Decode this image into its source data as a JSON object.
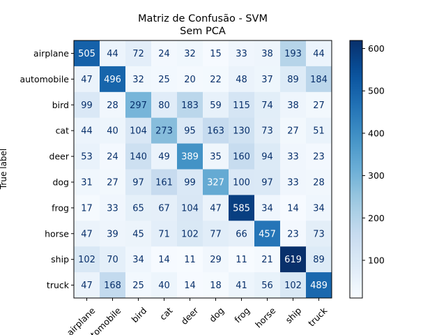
{
  "chart_data": {
    "type": "heatmap",
    "title": "Matriz de Confusão - SVM",
    "subtitle": "Sem PCA",
    "ylabel": "True label",
    "xlabel": "",
    "categories": [
      "airplane",
      "automobile",
      "bird",
      "cat",
      "deer",
      "dog",
      "frog",
      "horse",
      "ship",
      "truck"
    ],
    "matrix": [
      [
        505,
        44,
        72,
        24,
        32,
        15,
        33,
        38,
        193,
        44
      ],
      [
        47,
        496,
        32,
        25,
        20,
        22,
        48,
        37,
        89,
        184
      ],
      [
        99,
        28,
        297,
        80,
        183,
        59,
        115,
        74,
        38,
        27
      ],
      [
        44,
        40,
        104,
        273,
        95,
        163,
        130,
        73,
        27,
        51
      ],
      [
        53,
        24,
        140,
        49,
        389,
        35,
        160,
        94,
        33,
        23
      ],
      [
        31,
        27,
        97,
        161,
        99,
        327,
        100,
        97,
        33,
        28
      ],
      [
        17,
        33,
        65,
        67,
        104,
        47,
        585,
        34,
        14,
        34
      ],
      [
        47,
        39,
        45,
        71,
        102,
        77,
        66,
        457,
        23,
        73
      ],
      [
        102,
        70,
        34,
        14,
        11,
        29,
        11,
        21,
        619,
        89
      ],
      [
        47,
        168,
        25,
        40,
        14,
        18,
        41,
        56,
        102,
        489
      ]
    ],
    "colormap": "Blues",
    "vmin": 11,
    "vmax": 619,
    "colorbar_ticks": [
      100,
      200,
      300,
      400,
      500,
      600
    ],
    "grid": false
  }
}
